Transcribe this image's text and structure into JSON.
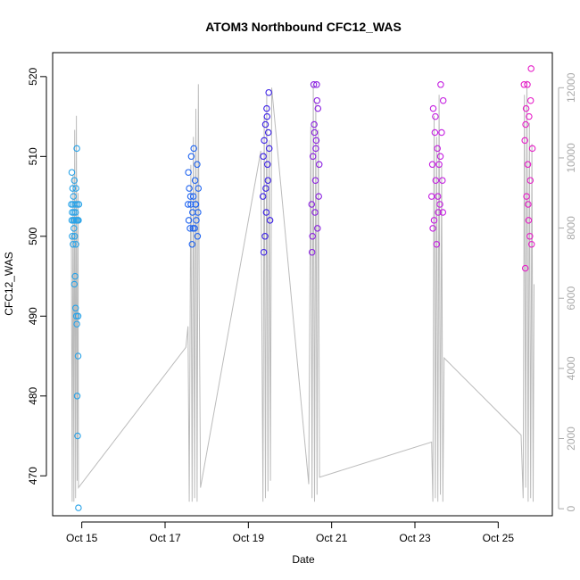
{
  "chart_data": {
    "type": "scatter",
    "title": "ATOM3 Northbound CFC12_WAS",
    "xlabel": "Date",
    "ylabel": "CFC12_WAS",
    "xlim": [
      14.3,
      26.3
    ],
    "ylim": [
      465,
      523
    ],
    "y2lim": [
      -200,
      13000
    ],
    "x_ticks": [
      {
        "value": 15,
        "label": "Oct 15"
      },
      {
        "value": 17,
        "label": "Oct 17"
      },
      {
        "value": 19,
        "label": "Oct 19"
      },
      {
        "value": 21,
        "label": "Oct 21"
      },
      {
        "value": 23,
        "label": "Oct 23"
      },
      {
        "value": 25,
        "label": "Oct 25"
      }
    ],
    "y_ticks": [
      470,
      480,
      490,
      500,
      510,
      520
    ],
    "y2_ticks": [
      0,
      2000,
      4000,
      6000,
      8000,
      10000,
      12000
    ],
    "grid": false,
    "legend": "none",
    "series": [
      {
        "color": "#29a3e8",
        "x": [
          14.75,
          14.76,
          14.76,
          14.77,
          14.77,
          14.78,
          14.79,
          14.79,
          14.8,
          14.8,
          14.81,
          14.81,
          14.82,
          14.82,
          14.83,
          14.83,
          14.84,
          14.84,
          14.85,
          14.85,
          14.86,
          14.86,
          14.87,
          14.87,
          14.88,
          14.88,
          14.89,
          14.89,
          14.9,
          14.9,
          14.91,
          14.91,
          14.92,
          14.92,
          14.93
        ],
        "values": [
          504,
          502,
          508,
          500,
          503,
          506,
          499,
          504,
          502,
          505,
          501,
          503,
          507,
          494,
          500,
          502,
          495,
          504,
          491,
          503,
          499,
          506,
          490,
          502,
          489,
          511,
          504,
          480,
          502,
          475,
          485,
          490,
          466,
          502,
          504
        ]
      },
      {
        "color": "#1f64f0",
        "x": [
          17.55,
          17.57,
          17.58,
          17.6,
          17.62,
          17.63,
          17.65,
          17.66,
          17.68,
          17.69,
          17.71,
          17.72,
          17.74,
          17.75,
          17.77,
          17.78,
          17.79,
          17.8,
          17.56,
          17.61,
          17.67,
          17.73
        ],
        "values": [
          504,
          502,
          506,
          501,
          504,
          510,
          499,
          503,
          505,
          511,
          501,
          507,
          504,
          502,
          509,
          500,
          503,
          506,
          508,
          505,
          501,
          504
        ]
      },
      {
        "color": "#3a1fe6",
        "x": [
          19.35,
          19.37,
          19.38,
          19.4,
          19.41,
          19.43,
          19.44,
          19.46,
          19.47,
          19.49,
          19.5,
          19.52,
          19.36,
          19.42,
          19.48,
          19.45
        ],
        "values": [
          505,
          498,
          512,
          500,
          514,
          503,
          516,
          509,
          507,
          518,
          511,
          502,
          510,
          506,
          513,
          515
        ]
      },
      {
        "color": "#8a1ee0",
        "x": [
          20.52,
          20.54,
          20.55,
          20.57,
          20.58,
          20.6,
          20.61,
          20.63,
          20.64,
          20.66,
          20.67,
          20.69,
          20.7,
          20.53,
          20.59,
          20.65,
          20.62
        ],
        "values": [
          504,
          500,
          510,
          519,
          514,
          503,
          507,
          512,
          519,
          501,
          516,
          505,
          509,
          498,
          513,
          517,
          511
        ]
      },
      {
        "color": "#c41ee0",
        "x": [
          23.4,
          23.42,
          23.44,
          23.46,
          23.48,
          23.5,
          23.52,
          23.54,
          23.56,
          23.58,
          23.6,
          23.62,
          23.64,
          23.66,
          23.68,
          23.43,
          23.49,
          23.55,
          23.61,
          23.67
        ],
        "values": [
          505,
          509,
          516,
          502,
          513,
          507,
          499,
          511,
          503,
          509,
          504,
          519,
          513,
          507,
          517,
          501,
          515,
          505,
          510,
          503
        ]
      },
      {
        "color": "#e61ec8",
        "x": [
          25.62,
          25.64,
          25.65,
          25.67,
          25.68,
          25.7,
          25.71,
          25.73,
          25.74,
          25.76,
          25.77,
          25.79,
          25.8,
          25.82,
          25.66,
          25.72,
          25.78
        ],
        "values": [
          519,
          512,
          496,
          516,
          505,
          519,
          509,
          502,
          515,
          500,
          507,
          521,
          499,
          511,
          514,
          504,
          517
        ]
      }
    ],
    "secondary_line": {
      "color": "#bbbbbb",
      "x": [
        14.75,
        14.77,
        14.79,
        14.81,
        14.83,
        14.85,
        14.87,
        14.89,
        14.91,
        14.92,
        17.5,
        17.55,
        17.58,
        17.62,
        17.65,
        17.68,
        17.71,
        17.74,
        17.77,
        17.8,
        17.82,
        17.85,
        19.3,
        19.35,
        19.38,
        19.41,
        19.44,
        19.47,
        19.5,
        19.53,
        19.56,
        20.45,
        20.5,
        20.53,
        20.56,
        20.59,
        20.62,
        20.65,
        20.68,
        20.71,
        23.4,
        23.43,
        23.46,
        23.49,
        23.52,
        23.55,
        23.58,
        23.61,
        23.64,
        23.67,
        23.7,
        25.55,
        25.6,
        25.63,
        25.66,
        25.69,
        25.72,
        25.75,
        25.78,
        25.81,
        25.84,
        25.86
      ],
      "values": [
        7800,
        200,
        9500,
        200,
        10800,
        300,
        11200,
        800,
        9000,
        600,
        4600,
        5200,
        200,
        9800,
        200,
        10600,
        300,
        11400,
        200,
        12100,
        6000,
        600,
        10200,
        200,
        11200,
        300,
        11800,
        500,
        10500,
        800,
        12000,
        700,
        10900,
        300,
        12100,
        200,
        11600,
        400,
        10800,
        900,
        1900,
        200,
        11200,
        300,
        10600,
        200,
        11800,
        400,
        9800,
        200,
        4300,
        2100,
        300,
        11800,
        600,
        12200,
        200,
        11000,
        300,
        10400,
        200,
        6400
      ]
    }
  }
}
